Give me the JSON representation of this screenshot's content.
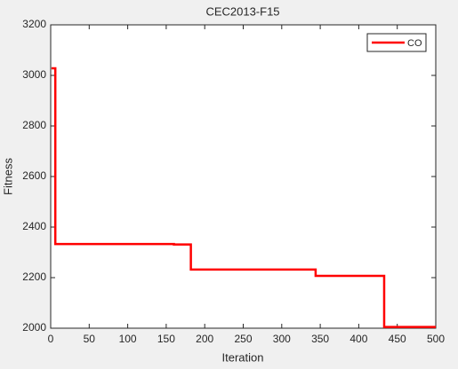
{
  "chart_data": {
    "type": "line",
    "title": "CEC2013-F15",
    "x_label": "Iteration",
    "y_label": "Fitness",
    "x": [
      1,
      6,
      6,
      160,
      160,
      182,
      182,
      344,
      344,
      433,
      433,
      500
    ],
    "series": [
      {
        "name": "CO",
        "color": "#ff0000",
        "values": [
          3028,
          3028,
          2333,
          2333,
          2331,
          2331,
          2232,
          2232,
          2207,
          2207,
          2005,
          2005
        ]
      }
    ],
    "xlim": [
      0,
      500
    ],
    "xticks": [
      0,
      50,
      100,
      150,
      200,
      250,
      300,
      350,
      400,
      450,
      500
    ],
    "ylim": [
      2000,
      3200
    ],
    "yticks": [
      2000,
      2200,
      2400,
      2600,
      2800,
      3000,
      3200
    ],
    "legend": "top-right"
  }
}
